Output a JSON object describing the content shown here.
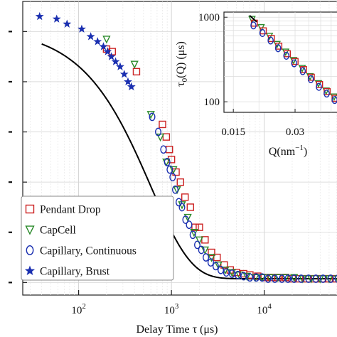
{
  "chart_data": [
    {
      "type": "scatter",
      "xlabel": "Delay Time τ (μs)",
      "ylabel": "",
      "x_scale": "log",
      "xlim": [
        25,
        70000
      ],
      "ylim": [
        -0.05,
        1.12
      ],
      "x_tick_labels": [
        "10",
        "10",
        "10"
      ],
      "x_tick_exponents": [
        "2",
        "3",
        "4"
      ],
      "x_tick_values": [
        100,
        1000,
        10000
      ],
      "grid": true,
      "legend_position": "lower-left",
      "fit_line": {
        "color": "#000000",
        "tau0": 1200,
        "beta": 1.0
      },
      "series": [
        {
          "name": "Pendant Drop",
          "marker": "square",
          "color": "#cc2222",
          "x": [
            200,
            230,
            420,
            800,
            880,
            950,
            1000,
            1120,
            1250,
            1400,
            1600,
            1800,
            2000,
            2300,
            2700,
            3100,
            3700,
            4300,
            5000,
            6000,
            7000,
            8500,
            10000,
            12000,
            14000,
            17000,
            20000,
            24000,
            29000,
            35000,
            42000,
            50000,
            60000
          ],
          "y": [
            0.93,
            0.92,
            0.84,
            0.63,
            0.58,
            0.53,
            0.49,
            0.44,
            0.4,
            0.34,
            0.3,
            0.22,
            0.22,
            0.17,
            0.12,
            0.1,
            0.07,
            0.05,
            0.04,
            0.035,
            0.03,
            0.025,
            0.02,
            0.02,
            0.02,
            0.02,
            0.015,
            0.015,
            0.015,
            0.015,
            0.015,
            0.015,
            0.015
          ]
        },
        {
          "name": "CapCell",
          "marker": "triangle-down",
          "color": "#2a8a2a",
          "x": [
            200,
            400,
            600,
            760,
            880,
            1050,
            1150,
            1300,
            1500,
            1750,
            2000,
            2300,
            2700,
            3200,
            3800,
            4500,
            5400,
            6500,
            8000,
            9500,
            11500,
            14000,
            17000,
            21000,
            26000,
            32000,
            40000,
            50000,
            62000
          ],
          "y": [
            0.97,
            0.87,
            0.67,
            0.58,
            0.48,
            0.45,
            0.37,
            0.31,
            0.26,
            0.2,
            0.17,
            0.13,
            0.1,
            0.07,
            0.05,
            0.04,
            0.03,
            0.025,
            0.02,
            0.02,
            0.02,
            0.02,
            0.02,
            0.02,
            0.015,
            0.015,
            0.015,
            0.015,
            0.015
          ]
        },
        {
          "name": "Capillary, Continuous",
          "marker": "circle",
          "color": "#1a2fb0",
          "x": [
            620,
            720,
            820,
            900,
            960,
            1030,
            1100,
            1200,
            1300,
            1420,
            1550,
            1700,
            1900,
            2100,
            2350,
            2650,
            3000,
            3400,
            3900,
            4500,
            5200,
            6000,
            7000,
            8200,
            9500,
            11000,
            13000,
            15500,
            18000,
            21000,
            25000,
            30000,
            36000,
            43000,
            52000,
            62000
          ],
          "y": [
            0.66,
            0.6,
            0.53,
            0.48,
            0.45,
            0.42,
            0.37,
            0.32,
            0.3,
            0.25,
            0.23,
            0.19,
            0.15,
            0.13,
            0.1,
            0.08,
            0.065,
            0.05,
            0.04,
            0.035,
            0.03,
            0.025,
            0.02,
            0.02,
            0.02,
            0.015,
            0.015,
            0.015,
            0.015,
            0.015,
            0.015,
            0.015,
            0.015,
            0.015,
            0.015,
            0.015
          ]
        },
        {
          "name": "Capillary, Brust",
          "marker": "star",
          "color": "#1a2fb0",
          "x": [
            38,
            58,
            75,
            108,
            135,
            160,
            185,
            205,
            225,
            250,
            280,
            310,
            340,
            370
          ],
          "y": [
            1.06,
            1.05,
            1.03,
            1.01,
            0.98,
            0.96,
            0.94,
            0.92,
            0.9,
            0.88,
            0.86,
            0.83,
            0.8,
            0.78
          ]
        }
      ]
    },
    {
      "type": "scatter",
      "xlabel": "Q(nm",
      "xlabel_exp": "−1",
      "ylabel": "τ",
      "ylabel_sub": "0",
      "ylabel_rest": "(Q) (μs)",
      "x_scale": "log",
      "y_scale": "log",
      "xlim": [
        0.0135,
        0.05
      ],
      "ylim": [
        75,
        1150
      ],
      "x_tick_labels": [
        "0.015",
        "0.03"
      ],
      "x_tick_values": [
        0.015,
        0.03
      ],
      "y_tick_labels": [
        "1000",
        "100"
      ],
      "y_tick_values": [
        1000,
        100
      ],
      "grid": true,
      "series": [
        {
          "name": "",
          "marker": "triangle-down",
          "color": "#2a8a2a",
          "x": [
            0.0185,
            0.0205,
            0.0225,
            0.0245,
            0.027,
            0.0295,
            0.0325,
            0.0355,
            0.039,
            0.0425,
            0.0465
          ],
          "y": [
            950,
            760,
            600,
            480,
            390,
            310,
            250,
            200,
            165,
            135,
            115
          ]
        },
        {
          "name": "",
          "marker": "square",
          "color": "#cc2222",
          "x": [
            0.019,
            0.021,
            0.023,
            0.025,
            0.0275,
            0.03,
            0.033,
            0.036,
            0.0395,
            0.043,
            0.047
          ],
          "y": [
            850,
            690,
            560,
            455,
            370,
            300,
            240,
            195,
            160,
            132,
            110
          ]
        },
        {
          "name": "",
          "marker": "circle",
          "color": "#1a2fb0",
          "x": [
            0.0188,
            0.0208,
            0.0228,
            0.0248,
            0.0272,
            0.0297,
            0.0327,
            0.0358,
            0.0392,
            0.0428,
            0.0468
          ],
          "y": [
            800,
            650,
            530,
            430,
            350,
            285,
            230,
            185,
            150,
            125,
            105
          ]
        }
      ],
      "fit_line": {
        "color": "#000000",
        "x": [
          0.018,
          0.0195
        ],
        "y": [
          1050,
          880
        ]
      }
    }
  ]
}
